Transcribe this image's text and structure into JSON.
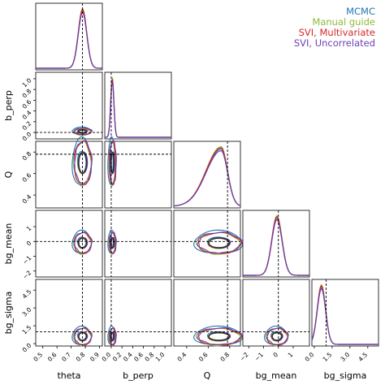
{
  "chart_data": {
    "type": "corner",
    "parameters": [
      "theta",
      "b_perp",
      "Q",
      "bg_mean",
      "bg_sigma"
    ],
    "truths": [
      0.78,
      0.0,
      0.78,
      0.0,
      1.0
    ],
    "ranges": [
      [
        0.45,
        0.92
      ],
      [
        -0.12,
        1.12
      ],
      [
        0.28,
        0.9
      ],
      [
        -2.4,
        2.1
      ],
      [
        -0.2,
        5.4
      ]
    ],
    "diag_ticks": {
      "0": [
        "0.5",
        "0.6",
        "0.7",
        "0.8",
        "0.9"
      ],
      "1": [
        "0.0",
        "0.2",
        "0.4",
        "0.6",
        "0.8",
        "1.0"
      ],
      "2": [
        "0.4",
        "0.6",
        "0.8"
      ],
      "3": [
        "−2",
        "−1",
        "0",
        "1"
      ],
      "4": [
        "0.0",
        "1.5",
        "3.0",
        "4.5"
      ]
    },
    "left_ticks": {
      "1": [
        "0.0",
        "0.2",
        "0.4",
        "0.6",
        "0.8",
        "1.0"
      ],
      "2": [
        "0.4",
        "0.6",
        "0.8"
      ],
      "3": [
        "−2",
        "−1",
        "0",
        "1"
      ],
      "4": [
        "0.0",
        "1.5",
        "3.0",
        "4.5"
      ]
    },
    "series": [
      {
        "name": "MCMC",
        "color": "#1f77b4"
      },
      {
        "name": "Manual guide",
        "color": "#8fba3a"
      },
      {
        "name": "SVI, Multivariate",
        "color": "#d62728"
      },
      {
        "name": "SVI, Uncorrelated",
        "color": "#6a3fb5"
      }
    ],
    "marginals": [
      {
        "shape": "gaussian",
        "mean": 0.78,
        "sd": 0.03
      },
      {
        "shape": "gaussian",
        "mean": 0.02,
        "sd": 0.03
      },
      {
        "shape": "skew",
        "mode": 0.72,
        "left_sd": 0.14,
        "right_sd": 0.06
      },
      {
        "shape": "gaussian",
        "mean": -0.1,
        "sd": 0.35
      },
      {
        "shape": "gaussian",
        "mean": 0.6,
        "sd": 0.35
      }
    ],
    "grid": false,
    "legend_position": "top-right"
  }
}
